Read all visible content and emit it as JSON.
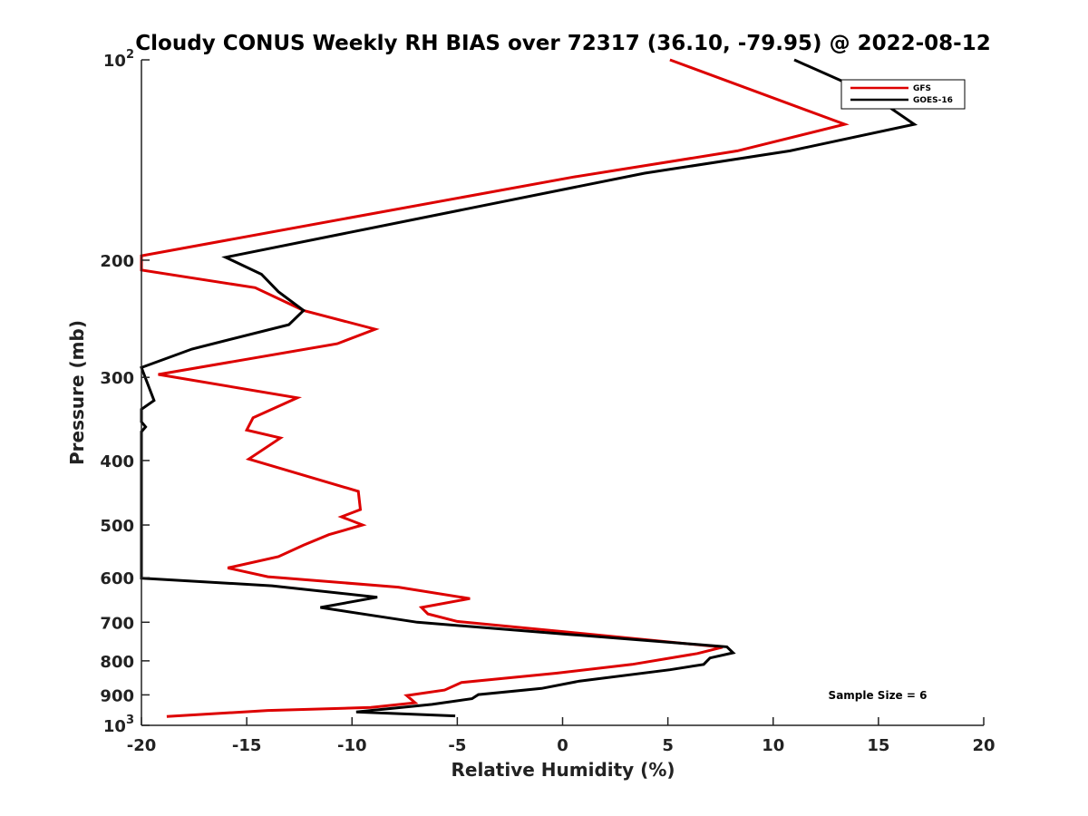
{
  "chart_data": {
    "type": "line",
    "title": "Cloudy CONUS Weekly RH BIAS over 72317 (36.10, -79.95) @ 2022-08-12",
    "xlabel": "Relative Humidity (%)",
    "ylabel": "Pressure (mb)",
    "xlim": [
      -20,
      20
    ],
    "ylim": [
      100,
      1000
    ],
    "y_scale": "log",
    "y_reversed": true,
    "x_ticks": [
      -20,
      -15,
      -10,
      -5,
      0,
      5,
      10,
      15,
      20
    ],
    "y_ticks": [
      {
        "value": 100,
        "label": "10",
        "sup": "2"
      },
      {
        "value": 200,
        "label": "200",
        "sup": ""
      },
      {
        "value": 300,
        "label": "300",
        "sup": ""
      },
      {
        "value": 400,
        "label": "400",
        "sup": ""
      },
      {
        "value": 500,
        "label": "500",
        "sup": ""
      },
      {
        "value": 600,
        "label": "600",
        "sup": ""
      },
      {
        "value": 700,
        "label": "700",
        "sup": ""
      },
      {
        "value": 800,
        "label": "800",
        "sup": ""
      },
      {
        "value": 900,
        "label": "900",
        "sup": ""
      },
      {
        "value": 1000,
        "label": "10",
        "sup": "3"
      }
    ],
    "grid": false,
    "legend_position": "top-right",
    "annotation": "Sample Size = 6",
    "series": [
      {
        "name": "GFS",
        "color": "#dd0000",
        "points": [
          [
            5.1,
            100
          ],
          [
            13.4,
            125
          ],
          [
            8.3,
            137
          ],
          [
            0.5,
            150
          ],
          [
            -20.0,
            197
          ],
          [
            -20.0,
            207
          ],
          [
            -14.6,
            220
          ],
          [
            -12.3,
            238
          ],
          [
            -8.9,
            254
          ],
          [
            -10.7,
            267
          ],
          [
            -19.2,
            297
          ],
          [
            -12.6,
            322
          ],
          [
            -14.7,
            345
          ],
          [
            -15.0,
            360
          ],
          [
            -13.4,
            370
          ],
          [
            -14.9,
            398
          ],
          [
            -9.7,
            445
          ],
          [
            -9.6,
            474
          ],
          [
            -10.5,
            486
          ],
          [
            -9.5,
            500
          ],
          [
            -11.1,
            517
          ],
          [
            -12.3,
            536
          ],
          [
            -13.5,
            558
          ],
          [
            -15.9,
            580
          ],
          [
            -14.0,
            598
          ],
          [
            -7.8,
            620
          ],
          [
            -4.4,
            645
          ],
          [
            -6.7,
            665
          ],
          [
            -6.4,
            680
          ],
          [
            -5.0,
            698
          ],
          [
            0.4,
            725
          ],
          [
            7.6,
            763
          ],
          [
            6.4,
            780
          ],
          [
            3.3,
            810
          ],
          [
            -0.3,
            835
          ],
          [
            -4.8,
            862
          ],
          [
            -5.6,
            885
          ],
          [
            -7.4,
            902
          ],
          [
            -7.0,
            925
          ],
          [
            -9.1,
            940
          ],
          [
            -14.0,
            950
          ],
          [
            -18.8,
            970
          ]
        ]
      },
      {
        "name": "GOES-16",
        "color": "#000000",
        "points": [
          [
            11.0,
            100
          ],
          [
            14.5,
            112
          ],
          [
            16.7,
            125
          ],
          [
            10.8,
            137
          ],
          [
            3.9,
            148
          ],
          [
            -16.0,
            198
          ],
          [
            -14.3,
            210
          ],
          [
            -13.5,
            223
          ],
          [
            -12.3,
            238
          ],
          [
            -13.0,
            250
          ],
          [
            -17.6,
            272
          ],
          [
            -20.0,
            290
          ],
          [
            -19.4,
            325
          ],
          [
            -20.0,
            335
          ],
          [
            -20.0,
            350
          ],
          [
            -19.8,
            356
          ],
          [
            -20.0,
            362
          ],
          [
            -20.0,
            601
          ],
          [
            -19.6,
            602
          ],
          [
            -13.8,
            617
          ],
          [
            -8.8,
            642
          ],
          [
            -11.5,
            665
          ],
          [
            -6.9,
            700
          ],
          [
            0.3,
            730
          ],
          [
            7.8,
            762
          ],
          [
            8.1,
            778
          ],
          [
            7.0,
            792
          ],
          [
            6.7,
            810
          ],
          [
            5.1,
            825
          ],
          [
            0.8,
            858
          ],
          [
            -1.0,
            880
          ],
          [
            -4.0,
            899
          ],
          [
            -4.3,
            912
          ],
          [
            -6.2,
            930
          ],
          [
            -9.8,
            955
          ],
          [
            -5.1,
            968
          ]
        ]
      }
    ]
  }
}
